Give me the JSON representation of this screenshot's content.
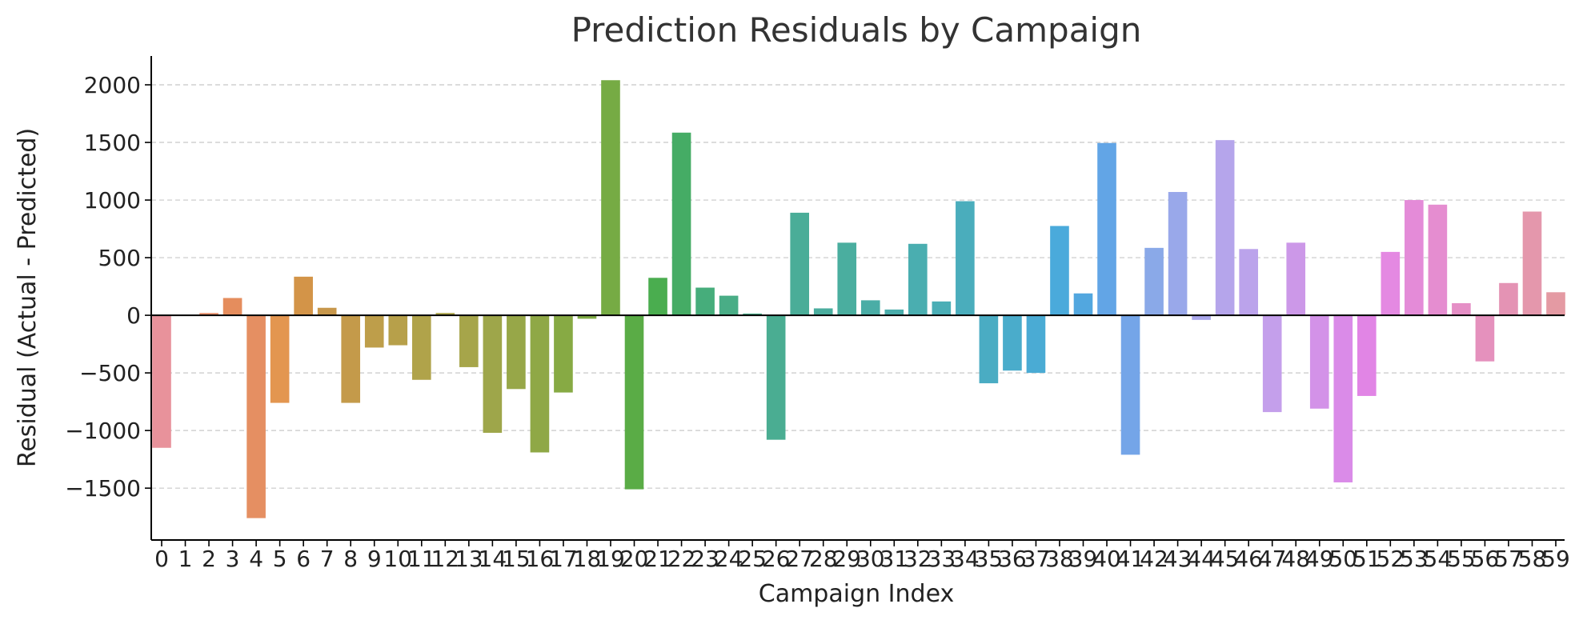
{
  "chart_data": {
    "type": "bar",
    "title": "Prediction Residuals by Campaign",
    "xlabel": "Campaign Index",
    "ylabel": "Residual (Actual - Predicted)",
    "ylim": [
      -1950,
      2250
    ],
    "yticks": [
      2000,
      1500,
      1000,
      500,
      0,
      -500,
      -1000,
      -1500
    ],
    "ytick_labels": [
      "2000",
      "1500",
      "1000",
      "500",
      "0",
      "−500",
      "−1000",
      "−1500"
    ],
    "grid": "horizontal dashed",
    "categories": [
      "0",
      "1",
      "2",
      "3",
      "4",
      "5",
      "6",
      "7",
      "8",
      "9",
      "10",
      "11",
      "12",
      "13",
      "14",
      "15",
      "16",
      "17",
      "18",
      "19",
      "20",
      "21",
      "22",
      "23",
      "24",
      "25",
      "26",
      "27",
      "28",
      "29",
      "30",
      "31",
      "32",
      "33",
      "34",
      "35",
      "36",
      "37",
      "38",
      "39",
      "40",
      "41",
      "42",
      "43",
      "44",
      "45",
      "46",
      "47",
      "48",
      "49",
      "50",
      "51",
      "52",
      "53",
      "54",
      "55",
      "56",
      "57",
      "58",
      "59"
    ],
    "values": [
      -1150,
      0,
      20,
      150,
      -1760,
      -760,
      335,
      65,
      -760,
      -280,
      -260,
      -560,
      20,
      -450,
      -1020,
      -640,
      -1190,
      -670,
      -30,
      2040,
      -1510,
      325,
      1585,
      240,
      170,
      15,
      -1080,
      890,
      60,
      630,
      130,
      50,
      620,
      120,
      990,
      -590,
      -480,
      -500,
      775,
      190,
      1495,
      -1210,
      585,
      1070,
      -40,
      1520,
      575,
      -840,
      630,
      -810,
      -1450,
      -700,
      550,
      1000,
      960,
      105,
      -400,
      280,
      900,
      200
    ],
    "colors": [
      "#e8929b",
      "#e8927a",
      "#e9916e",
      "#e58d5d",
      "#e58f62",
      "#e39650",
      "#d39448",
      "#c7974b",
      "#c49a4a",
      "#be9e4a",
      "#b7a04a",
      "#b0a34a",
      "#aba44a",
      "#a6a54a",
      "#9ea64a",
      "#97a748",
      "#8fa846",
      "#87aa44",
      "#7eaa44",
      "#76ab44",
      "#5aac46",
      "#4aad4f",
      "#45ac65",
      "#46ad7b",
      "#49ad86",
      "#49ad89",
      "#4aad92",
      "#4aad98",
      "#4aad9e",
      "#4aae9f",
      "#4aada6",
      "#4aadab",
      "#4aaeb0",
      "#4aaeb6",
      "#4aadbc",
      "#4aacc3",
      "#4aaccb",
      "#4aabd4",
      "#4aaadb",
      "#52a7df",
      "#62a5e6",
      "#74a5e8",
      "#8aa9e8",
      "#99a8ea",
      "#aaa7eb",
      "#b5a5eb",
      "#bba3eb",
      "#c49feb",
      "#cc98e8",
      "#d392e8",
      "#da8be8",
      "#e185e5",
      "#e489e2",
      "#e48bd8",
      "#e58dd0",
      "#e58fc6",
      "#e591bd",
      "#e493b4",
      "#e497ac",
      "#e49aa3"
    ]
  }
}
